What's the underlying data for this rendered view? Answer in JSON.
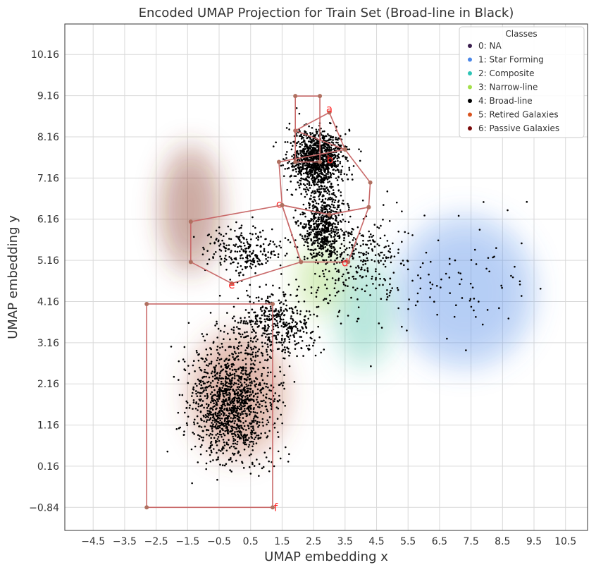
{
  "chart_data": {
    "type": "scatter",
    "title": "Encoded UMAP Projection for Train Set (Broad-line in Black)",
    "xlabel": "UMAP embedding x",
    "ylabel": "UMAP embedding y",
    "xlim": [
      -5.4,
      11.2
    ],
    "ylim": [
      -1.4,
      10.9
    ],
    "xticks": [
      -4.5,
      -3.5,
      -2.5,
      -1.5,
      -0.5,
      0.5,
      1.5,
      2.5,
      3.5,
      4.5,
      5.5,
      6.5,
      7.5,
      8.5,
      9.5,
      10.5
    ],
    "xtick_labels": [
      "−4.5",
      "−3.5",
      "−2.5",
      "−1.5",
      "−0.5",
      "0.5",
      "1.5",
      "2.5",
      "3.5",
      "4.5",
      "5.5",
      "6.5",
      "7.5",
      "8.5",
      "9.5",
      "10.5"
    ],
    "yticks": [
      -0.84,
      0.16,
      1.16,
      2.16,
      3.16,
      4.16,
      5.16,
      6.16,
      7.16,
      8.16,
      9.16,
      10.16
    ],
    "ytick_labels": [
      "−0.84",
      "0.16",
      "1.16",
      "2.16",
      "3.16",
      "4.16",
      "5.16",
      "6.16",
      "7.16",
      "8.16",
      "9.16",
      "10.16"
    ],
    "grid": true,
    "legend": {
      "title": "Classes",
      "position": "top-right",
      "entries": [
        {
          "label": "0: NA",
          "color": "#3b1f4f"
        },
        {
          "label": "1: Star Forming",
          "color": "#4a86e8"
        },
        {
          "label": "2: Composite",
          "color": "#2ec4b6"
        },
        {
          "label": "3: Narrow-line",
          "color": "#a4e04a"
        },
        {
          "label": "4: Broad-line",
          "color": "#000000"
        },
        {
          "label": "5: Retired Galaxies",
          "color": "#d9531e"
        },
        {
          "label": "6: Passive Galaxies",
          "color": "#7a0a0a"
        }
      ]
    },
    "density_regions": [
      {
        "class": "6: Passive Galaxies",
        "color": "#8b3a2a",
        "center": [
          -1.4,
          6.4
        ],
        "spread": [
          1.0,
          1.6
        ]
      },
      {
        "class": "5: Retired Galaxies",
        "color": "#b8563a",
        "center": [
          0.1,
          1.9
        ],
        "spread": [
          1.6,
          1.6
        ]
      },
      {
        "class": "1: Star Forming",
        "color": "#5b8fe8",
        "center": [
          7.3,
          4.4
        ],
        "spread": [
          2.3,
          1.9
        ]
      },
      {
        "class": "2: Composite",
        "color": "#5fc9b0",
        "center": [
          4.1,
          3.9
        ],
        "spread": [
          1.0,
          1.4
        ]
      },
      {
        "class": "3: Narrow-line",
        "color": "#a6d96a",
        "center": [
          2.7,
          4.7
        ],
        "spread": [
          0.8,
          0.9
        ]
      }
    ],
    "broad_line_clusters": [
      {
        "center": [
          2.6,
          7.6
        ],
        "spread": [
          0.75,
          0.65
        ],
        "n": 1100
      },
      {
        "center": [
          2.8,
          6.0
        ],
        "spread": [
          0.6,
          0.8
        ],
        "n": 600
      },
      {
        "center": [
          -0.1,
          1.7
        ],
        "spread": [
          1.2,
          1.25
        ],
        "n": 1300
      },
      {
        "center": [
          0.3,
          5.4
        ],
        "spread": [
          1.1,
          0.55
        ],
        "n": 250
      },
      {
        "center": [
          1.3,
          3.6
        ],
        "spread": [
          1.2,
          0.7
        ],
        "n": 450
      },
      {
        "center": [
          4.0,
          5.2
        ],
        "spread": [
          1.5,
          1.0
        ],
        "n": 280
      },
      {
        "center": [
          6.5,
          4.5
        ],
        "spread": [
          2.5,
          1.3
        ],
        "n": 100
      }
    ],
    "regions": [
      {
        "label": "a",
        "label_pos": [
          3.0,
          8.84
        ],
        "vertices": [
          [
            1.92,
            8.31
          ],
          [
            3.0,
            8.75
          ],
          [
            3.5,
            7.85
          ]
        ]
      },
      {
        "label": "b",
        "label_pos": [
          3.02,
          7.6
        ],
        "vertices": [
          [
            1.92,
            9.15
          ],
          [
            2.7,
            9.15
          ],
          [
            2.7,
            7.55
          ],
          [
            1.92,
            7.55
          ]
        ]
      },
      {
        "label": "c",
        "label_pos": [
          1.4,
          6.52
        ],
        "vertices": [
          [
            1.4,
            7.55
          ],
          [
            3.5,
            7.85
          ],
          [
            4.3,
            7.05
          ],
          [
            4.25,
            6.45
          ],
          [
            3.0,
            6.27
          ],
          [
            1.5,
            6.5
          ]
        ]
      },
      {
        "label": "d",
        "label_pos": [
          3.5,
          5.1
        ],
        "vertices": [
          [
            1.5,
            6.5
          ],
          [
            3.0,
            6.27
          ],
          [
            4.25,
            6.45
          ],
          [
            3.6,
            5.12
          ],
          [
            2.1,
            5.12
          ]
        ]
      },
      {
        "label": "e",
        "label_pos": [
          -0.1,
          4.56
        ],
        "vertices": [
          [
            -1.4,
            6.1
          ],
          [
            1.5,
            6.5
          ],
          [
            2.1,
            5.12
          ],
          [
            -0.1,
            4.6
          ],
          [
            -1.4,
            5.12
          ]
        ]
      },
      {
        "label": "f",
        "label_pos": [
          1.3,
          -0.84
        ],
        "vertices": [
          [
            -2.8,
            4.1
          ],
          [
            1.2,
            4.1
          ],
          [
            1.2,
            -0.84
          ],
          [
            -2.8,
            -0.84
          ]
        ]
      }
    ]
  }
}
